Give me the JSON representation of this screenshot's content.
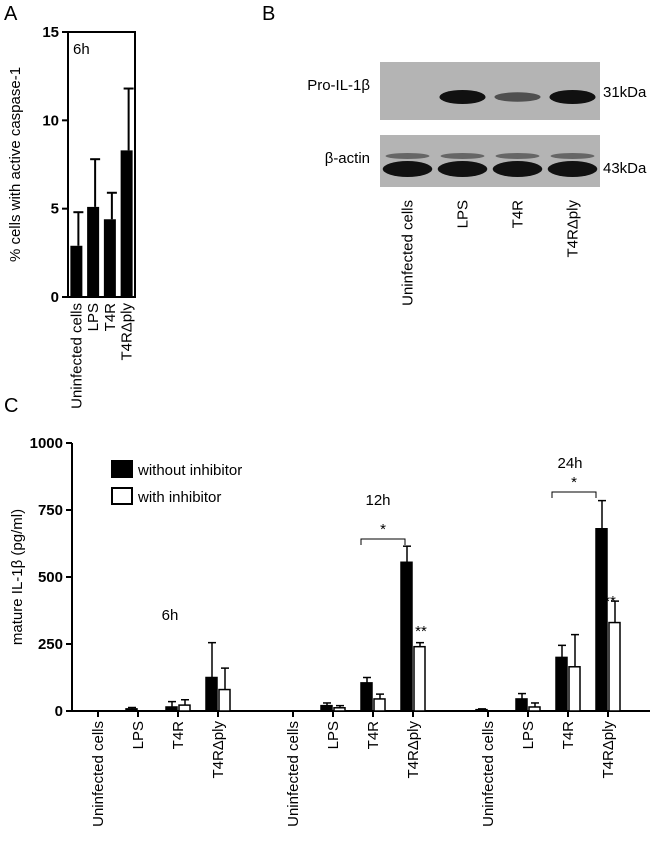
{
  "chart_data": [
    {
      "type": "bar",
      "panel": "A",
      "ylabel": "% cells with active caspase-1",
      "annotation": "6h",
      "categories": [
        "Uninfected cells",
        "LPS",
        "T4R",
        "T4RΔply"
      ],
      "values": [
        2.9,
        5.1,
        4.4,
        8.3
      ],
      "errors": [
        1.9,
        2.7,
        1.5,
        3.5
      ],
      "color": "#000000",
      "ylim": [
        0,
        15
      ],
      "yticks": [
        0,
        5,
        10,
        15
      ]
    },
    {
      "type": "blot",
      "panel": "B",
      "rows": [
        "Pro-IL-1β",
        "β-actin"
      ],
      "markers": [
        "31kDa",
        "43kDa"
      ],
      "lanes": [
        "Uninfected cells",
        "LPS",
        "T4R",
        "T4RΔply"
      ]
    },
    {
      "type": "grouped_bar",
      "panel": "C",
      "ylabel": "mature IL-1β (pg/ml)",
      "groups": [
        "6h",
        "12h",
        "24h"
      ],
      "categories": [
        "Uninfected cells",
        "LPS",
        "T4R",
        "T4RΔply",
        "Uninfected cells",
        "LPS",
        "T4R",
        "T4RΔply",
        "Uninfected cells",
        "LPS",
        "T4R",
        "T4RΔply"
      ],
      "series": [
        {
          "name": "without inhibitor",
          "color": "#000000",
          "values": [
            0,
            8,
            15,
            125,
            0,
            20,
            105,
            555,
            5,
            45,
            200,
            680
          ],
          "errors": [
            0,
            5,
            20,
            130,
            0,
            10,
            20,
            60,
            3,
            20,
            45,
            105
          ]
        },
        {
          "name": "with inhibitor",
          "color": "#ffffff",
          "values": [
            0,
            0,
            22,
            80,
            0,
            12,
            45,
            240,
            0,
            15,
            165,
            330
          ],
          "errors": [
            0,
            0,
            20,
            80,
            0,
            8,
            18,
            15,
            0,
            15,
            120,
            80
          ]
        }
      ],
      "annotations": [
        "*",
        "**",
        "*",
        "**"
      ],
      "ylim": [
        0,
        1000
      ],
      "yticks": [
        0,
        250,
        500,
        750,
        1000
      ]
    }
  ]
}
